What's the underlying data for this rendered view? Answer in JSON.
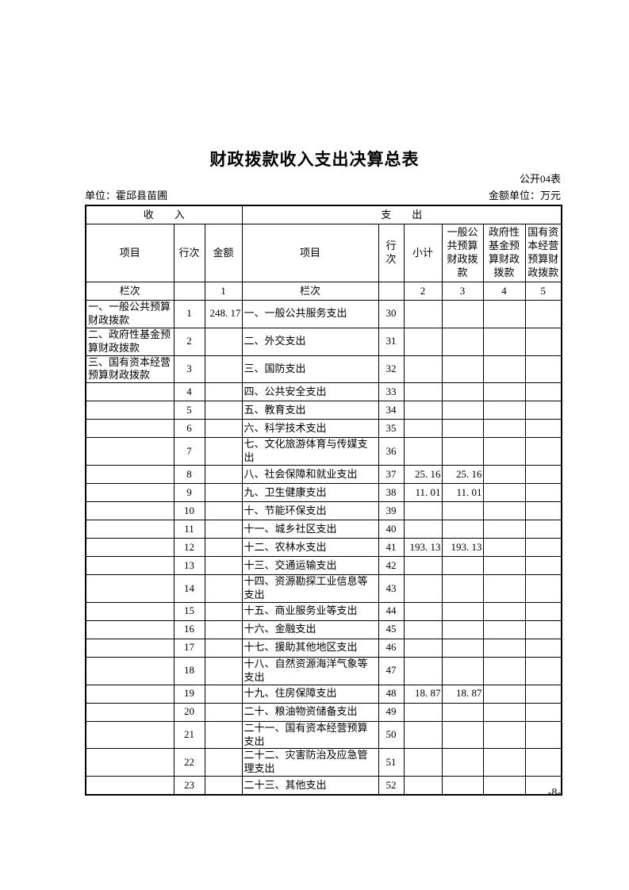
{
  "document": {
    "title": "财政拨款收入支出决算总表",
    "form_code": "公开04表",
    "unit": "单位：霍邱县苗圃",
    "amount_unit": "金额单位：万元",
    "page_number": "-8-"
  },
  "table": {
    "sections": {
      "income": "收　　入",
      "expense": "支　　出"
    },
    "headers": {
      "income_item": "项目",
      "income_row_no": "行次",
      "income_amount": "金额",
      "expense_item": "项目",
      "expense_row_no": "行次",
      "subtotal": "小计",
      "general_public_budget": "一般公共预算财政拨款",
      "govt_fund_budget": "政府性基金预算财政拨款",
      "state_capital_budget": "国有资本经营预算财政拨款"
    },
    "index_row": [
      "栏次",
      "",
      "1",
      "栏次",
      "",
      "2",
      "3",
      "4",
      "5"
    ],
    "rows": [
      [
        "一、一般公共预算财政拨款",
        "1",
        "248. 17",
        "一、一般公共服务支出",
        "30",
        "",
        "",
        "",
        ""
      ],
      [
        "二、政府性基金预算财政拨款",
        "2",
        "",
        "二、外交支出",
        "31",
        "",
        "",
        "",
        ""
      ],
      [
        "三、国有资本经营预算财政拨款",
        "3",
        "",
        "三、国防支出",
        "32",
        "",
        "",
        "",
        ""
      ],
      [
        "",
        "4",
        "",
        "四、公共安全支出",
        "33",
        "",
        "",
        "",
        ""
      ],
      [
        "",
        "5",
        "",
        "五、教育支出",
        "34",
        "",
        "",
        "",
        ""
      ],
      [
        "",
        "6",
        "",
        "六、科学技术支出",
        "35",
        "",
        "",
        "",
        ""
      ],
      [
        "",
        "7",
        "",
        "七、文化旅游体育与传媒支出",
        "36",
        "",
        "",
        "",
        ""
      ],
      [
        "",
        "8",
        "",
        "八、社会保障和就业支出",
        "37",
        "25. 16",
        "25. 16",
        "",
        ""
      ],
      [
        "",
        "9",
        "",
        "九、卫生健康支出",
        "38",
        "11. 01",
        "11. 01",
        "",
        ""
      ],
      [
        "",
        "10",
        "",
        "十、节能环保支出",
        "39",
        "",
        "",
        "",
        ""
      ],
      [
        "",
        "11",
        "",
        "十一、城乡社区支出",
        "40",
        "",
        "",
        "",
        ""
      ],
      [
        "",
        "12",
        "",
        "十二、农林水支出",
        "41",
        "193. 13",
        "193. 13",
        "",
        ""
      ],
      [
        "",
        "13",
        "",
        "十三、交通运输支出",
        "42",
        "",
        "",
        "",
        ""
      ],
      [
        "",
        "14",
        "",
        "十四、资源勘探工业信息等支出",
        "43",
        "",
        "",
        "",
        ""
      ],
      [
        "",
        "15",
        "",
        "十五、商业服务业等支出",
        "44",
        "",
        "",
        "",
        ""
      ],
      [
        "",
        "16",
        "",
        "十六、金融支出",
        "45",
        "",
        "",
        "",
        ""
      ],
      [
        "",
        "17",
        "",
        "十七、援助其他地区支出",
        "46",
        "",
        "",
        "",
        ""
      ],
      [
        "",
        "18",
        "",
        "十八、自然资源海洋气象等支出",
        "47",
        "",
        "",
        "",
        ""
      ],
      [
        "",
        "19",
        "",
        "十九、住房保障支出",
        "48",
        "18. 87",
        "18. 87",
        "",
        ""
      ],
      [
        "",
        "20",
        "",
        "二十、粮油物资储备支出",
        "49",
        "",
        "",
        "",
        ""
      ],
      [
        "",
        "21",
        "",
        "二十一、国有资本经营预算支出",
        "50",
        "",
        "",
        "",
        ""
      ],
      [
        "",
        "22",
        "",
        "二十二、灾害防治及应急管理支出",
        "51",
        "",
        "",
        "",
        ""
      ],
      [
        "",
        "23",
        "",
        "二十三、其他支出",
        "52",
        "",
        "",
        "",
        ""
      ]
    ]
  }
}
